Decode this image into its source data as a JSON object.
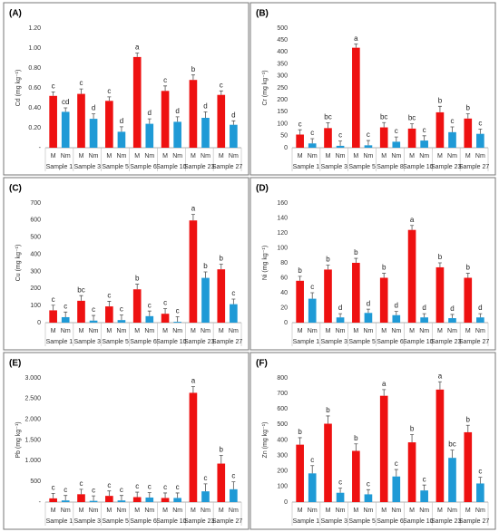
{
  "chart_data": [
    {
      "type": "bar",
      "panel_label": "(A)",
      "ylabel": "Cd (mg kg⁻¹)",
      "categories": [
        "Sample 1",
        "Sample 3",
        "Sample 5",
        "Sample 6",
        "Sample 10",
        "Sample 23",
        "Sample 27"
      ],
      "series": [
        {
          "name": "M",
          "color": "#ee1111",
          "values": [
            0.52,
            0.54,
            0.47,
            0.91,
            0.57,
            0.68,
            0.53
          ],
          "errors": [
            0.04,
            0.05,
            0.04,
            0.04,
            0.05,
            0.05,
            0.04
          ],
          "letters": [
            "c",
            "c",
            "c",
            "a",
            "c",
            "b",
            "c"
          ]
        },
        {
          "name": "Nm",
          "color": "#1f9ad6",
          "values": [
            0.36,
            0.29,
            0.16,
            0.24,
            0.26,
            0.3,
            0.23
          ],
          "errors": [
            0.04,
            0.05,
            0.05,
            0.05,
            0.05,
            0.06,
            0.04
          ],
          "letters": [
            "cd",
            "d",
            "d",
            "d",
            "d",
            "d",
            "d"
          ]
        }
      ],
      "ylim": [
        0,
        1.2
      ],
      "yticks": [
        {
          "value": 0,
          "label": "-"
        },
        {
          "value": 0.2,
          "label": "0.20"
        },
        {
          "value": 0.4,
          "label": "0.40"
        },
        {
          "value": 0.6,
          "label": "0.60"
        },
        {
          "value": 0.8,
          "label": "0.80"
        },
        {
          "value": 1.0,
          "label": "1.00"
        },
        {
          "value": 1.2,
          "label": "1.20"
        }
      ]
    },
    {
      "type": "bar",
      "panel_label": "(B)",
      "ylabel": "Cr (mg kg⁻¹)",
      "categories": [
        "Sample 1",
        "Sample 3",
        "Sample 5",
        "Sample 8",
        "Sample 10",
        "Sample 23",
        "Sample 27"
      ],
      "series": [
        {
          "name": "M",
          "color": "#ee1111",
          "values": [
            55,
            82,
            418,
            85,
            80,
            148,
            122
          ],
          "errors": [
            20,
            22,
            15,
            20,
            20,
            25,
            20
          ],
          "letters": [
            "c",
            "bc",
            "a",
            "bc",
            "bc",
            "b",
            "b"
          ]
        },
        {
          "name": "Nm",
          "color": "#1f9ad6",
          "values": [
            18,
            8,
            10,
            25,
            30,
            65,
            58
          ],
          "errors": [
            20,
            20,
            20,
            20,
            20,
            22,
            20
          ],
          "letters": [
            "c",
            "c",
            "c",
            "c",
            "c",
            "c",
            "c"
          ]
        }
      ],
      "ylim": [
        0,
        500
      ],
      "yticks": [
        0,
        50,
        100,
        150,
        200,
        250,
        300,
        350,
        400,
        450,
        500
      ]
    },
    {
      "type": "bar",
      "panel_label": "(C)",
      "ylabel": "Cu (mg kg⁻¹)",
      "categories": [
        "Sample 1",
        "Sample 3",
        "Sample 5",
        "Sample 6",
        "Sample 10",
        "Sample 23",
        "Sample 27"
      ],
      "series": [
        {
          "name": "M",
          "color": "#ee1111",
          "values": [
            72,
            128,
            95,
            195,
            52,
            598,
            312
          ],
          "errors": [
            30,
            30,
            30,
            30,
            30,
            35,
            30
          ],
          "letters": [
            "c",
            "bc",
            "c",
            "b",
            "c",
            "a",
            "b"
          ]
        },
        {
          "name": "Nm",
          "color": "#1f9ad6",
          "values": [
            32,
            12,
            15,
            38,
            5,
            262,
            108
          ],
          "errors": [
            30,
            30,
            30,
            30,
            30,
            35,
            30
          ],
          "letters": [
            "c",
            "c",
            "c",
            "c",
            "c",
            "b",
            "c"
          ]
        }
      ],
      "ylim": [
        0,
        700
      ],
      "yticks": [
        0,
        100,
        200,
        300,
        400,
        500,
        600,
        700
      ]
    },
    {
      "type": "bar",
      "panel_label": "(D)",
      "ylabel": "Ni (mg kg⁻¹)",
      "categories": [
        "Sample 1",
        "Sample 3",
        "Sample 5",
        "Sample 6",
        "Sample 10",
        "Sample 23",
        "Sample 27"
      ],
      "series": [
        {
          "name": "M",
          "color": "#ee1111",
          "values": [
            56,
            71,
            80,
            60,
            124,
            74,
            60
          ],
          "errors": [
            6,
            6,
            6,
            6,
            6,
            6,
            6
          ],
          "letters": [
            "b",
            "b",
            "b",
            "b",
            "a",
            "b",
            "b"
          ]
        },
        {
          "name": "Nm",
          "color": "#1f9ad6",
          "values": [
            32,
            7,
            13,
            10,
            7,
            6,
            7
          ],
          "errors": [
            8,
            5,
            5,
            5,
            5,
            5,
            5
          ],
          "letters": [
            "c",
            "d",
            "d",
            "d",
            "d",
            "d",
            "d"
          ]
        }
      ],
      "ylim": [
        0,
        160
      ],
      "yticks": [
        0,
        20,
        40,
        60,
        80,
        100,
        120,
        140,
        160
      ]
    },
    {
      "type": "bar",
      "panel_label": "(E)",
      "ylabel": "Pb (mg kg⁻¹)",
      "categories": [
        "Sample 1",
        "Sample 3",
        "Sample 5",
        "Sample 6",
        "Sample 10",
        "Sample 23",
        "Sample 27"
      ],
      "series": [
        {
          "name": "M",
          "color": "#ee1111",
          "values": [
            90,
            190,
            150,
            120,
            100,
            2640,
            930
          ],
          "errors": [
            120,
            120,
            120,
            120,
            120,
            150,
            200
          ],
          "letters": [
            "c",
            "c",
            "c",
            "c",
            "c",
            "a",
            "b"
          ]
        },
        {
          "name": "Nm",
          "color": "#1f9ad6",
          "values": [
            40,
            30,
            40,
            110,
            100,
            260,
            310
          ],
          "errors": [
            120,
            120,
            120,
            120,
            120,
            180,
            180
          ],
          "letters": [
            "c",
            "c",
            "c",
            "c",
            "c",
            "c",
            "c"
          ]
        }
      ],
      "ylim": [
        0,
        3000
      ],
      "yticks": [
        {
          "value": 0,
          "label": "-"
        },
        500,
        {
          "value": 1000,
          "label": "1.000"
        },
        {
          "value": 1500,
          "label": "1.500"
        },
        {
          "value": 2000,
          "label": "2.000"
        },
        {
          "value": 2500,
          "label": "2.500"
        },
        {
          "value": 3000,
          "label": "3.000"
        }
      ]
    },
    {
      "type": "bar",
      "panel_label": "(F)",
      "ylabel": "Zn (mg kg⁻¹)",
      "categories": [
        "Sample 1",
        "Sample 3",
        "Sample 5",
        "Sample 6",
        "Sample 10",
        "Sample 23",
        "Sample 27"
      ],
      "series": [
        {
          "name": "M",
          "color": "#ee1111",
          "values": [
            370,
            505,
            330,
            685,
            385,
            725,
            450
          ],
          "errors": [
            45,
            50,
            45,
            40,
            50,
            50,
            45
          ],
          "letters": [
            "b",
            "b",
            "b",
            "a",
            "b",
            "a",
            "b"
          ]
        },
        {
          "name": "Nm",
          "color": "#1f9ad6",
          "values": [
            185,
            60,
            50,
            165,
            75,
            285,
            120
          ],
          "errors": [
            50,
            30,
            30,
            45,
            35,
            50,
            40
          ],
          "letters": [
            "c",
            "c",
            "c",
            "c",
            "c",
            "bc",
            "c"
          ]
        }
      ],
      "ylim": [
        0,
        800
      ],
      "yticks": [
        0,
        100,
        200,
        300,
        400,
        500,
        600,
        700,
        800
      ]
    }
  ]
}
